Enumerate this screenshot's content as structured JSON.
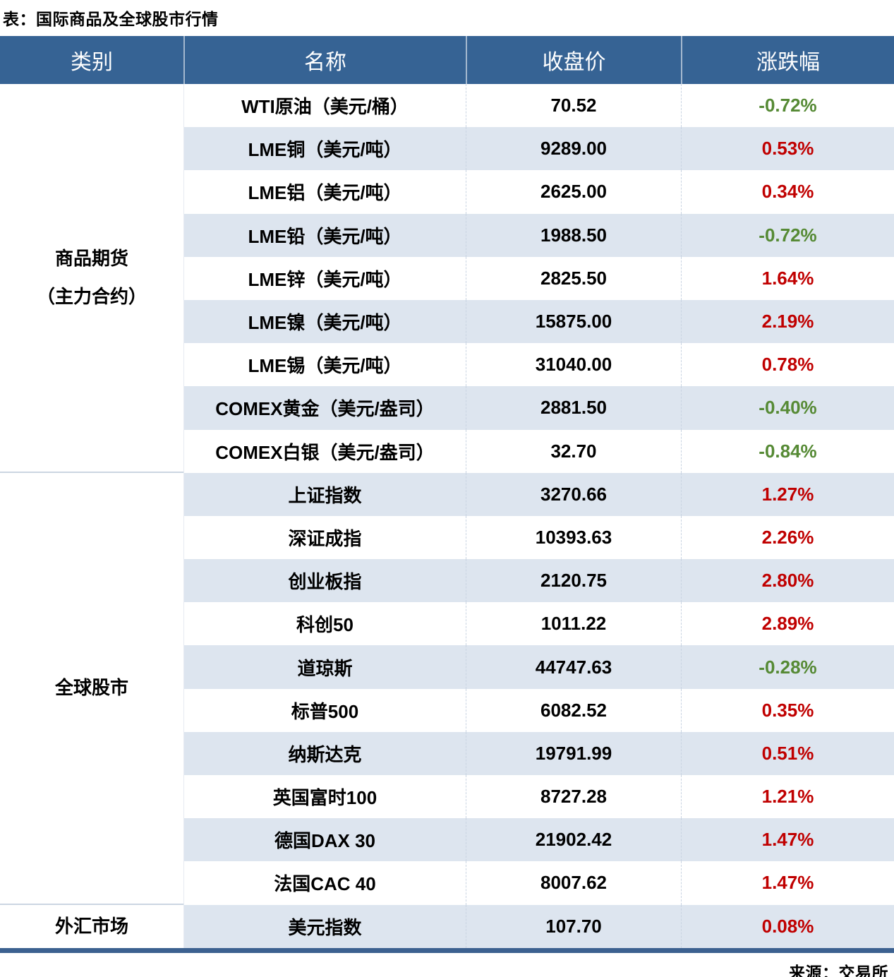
{
  "title": "表：国际商品及全球股市行情",
  "source": "来源：交易所",
  "headers": [
    "类别",
    "名称",
    "收盘价",
    "涨跌幅"
  ],
  "categories": [
    {
      "lines": [
        "商品期货",
        "（主力合约）"
      ]
    },
    {
      "lines": [
        "全球股市"
      ]
    },
    {
      "lines": [
        "外汇市场"
      ]
    }
  ],
  "rows": [
    {
      "name": "WTI原油（美元/桶）",
      "close": "70.52",
      "change": "-0.72%"
    },
    {
      "name": "LME铜（美元/吨）",
      "close": "9289.00",
      "change": "0.53%"
    },
    {
      "name": "LME铝（美元/吨）",
      "close": "2625.00",
      "change": "0.34%"
    },
    {
      "name": "LME铅（美元/吨）",
      "close": "1988.50",
      "change": "-0.72%"
    },
    {
      "name": "LME锌（美元/吨）",
      "close": "2825.50",
      "change": "1.64%"
    },
    {
      "name": "LME镍（美元/吨）",
      "close": "15875.00",
      "change": "2.19%"
    },
    {
      "name": "LME锡（美元/吨）",
      "close": "31040.00",
      "change": "0.78%"
    },
    {
      "name": "COMEX黄金（美元/盎司）",
      "close": "2881.50",
      "change": "-0.40%"
    },
    {
      "name": "COMEX白银（美元/盎司）",
      "close": "32.70",
      "change": "-0.84%"
    },
    {
      "name": "上证指数",
      "close": "3270.66",
      "change": "1.27%"
    },
    {
      "name": "深证成指",
      "close": "10393.63",
      "change": "2.26%"
    },
    {
      "name": "创业板指",
      "close": "2120.75",
      "change": "2.80%"
    },
    {
      "name": "科创50",
      "close": "1011.22",
      "change": "2.89%"
    },
    {
      "name": "道琼斯",
      "close": "44747.63",
      "change": "-0.28%"
    },
    {
      "name": "标普500",
      "close": "6082.52",
      "change": "0.35%"
    },
    {
      "name": "纳斯达克",
      "close": "19791.99",
      "change": "0.51%"
    },
    {
      "name": "英国富时100",
      "close": "8727.28",
      "change": "1.21%"
    },
    {
      "name": "德国DAX 30",
      "close": "21902.42",
      "change": "1.47%"
    },
    {
      "name": "法国CAC 40",
      "close": "8007.62",
      "change": "1.47%"
    },
    {
      "name": "美元指数",
      "close": "107.70",
      "change": "0.08%"
    }
  ],
  "colors": {
    "header_bg": "#366394",
    "stripe": "#dde5ef",
    "positive_red": "#c00000",
    "negative_green": "#568a35",
    "bottom_border": "#3c6190"
  },
  "chart_data": {
    "type": "table",
    "title": "表：国际商品及全球股市行情",
    "columns": [
      "类别",
      "名称",
      "收盘价",
      "涨跌幅"
    ],
    "rows": [
      [
        "商品期货（主力合约）",
        "WTI原油（美元/桶）",
        70.52,
        "-0.72%"
      ],
      [
        "商品期货（主力合约）",
        "LME铜（美元/吨）",
        9289.0,
        "0.53%"
      ],
      [
        "商品期货（主力合约）",
        "LME铝（美元/吨）",
        2625.0,
        "0.34%"
      ],
      [
        "商品期货（主力合约）",
        "LME铅（美元/吨）",
        1988.5,
        "-0.72%"
      ],
      [
        "商品期货（主力合约）",
        "LME锌（美元/吨）",
        2825.5,
        "1.64%"
      ],
      [
        "商品期货（主力合约）",
        "LME镍（美元/吨）",
        15875.0,
        "2.19%"
      ],
      [
        "商品期货（主力合约）",
        "LME锡（美元/吨）",
        31040.0,
        "0.78%"
      ],
      [
        "商品期货（主力合约）",
        "COMEX黄金（美元/盎司）",
        2881.5,
        "-0.40%"
      ],
      [
        "商品期货（主力合约）",
        "COMEX白银（美元/盎司）",
        32.7,
        "-0.84%"
      ],
      [
        "全球股市",
        "上证指数",
        3270.66,
        "1.27%"
      ],
      [
        "全球股市",
        "深证成指",
        10393.63,
        "2.26%"
      ],
      [
        "全球股市",
        "创业板指",
        2120.75,
        "2.80%"
      ],
      [
        "全球股市",
        "科创50",
        1011.22,
        "2.89%"
      ],
      [
        "全球股市",
        "道琼斯",
        44747.63,
        "-0.28%"
      ],
      [
        "全球股市",
        "标普500",
        6082.52,
        "0.35%"
      ],
      [
        "全球股市",
        "纳斯达克",
        19791.99,
        "0.51%"
      ],
      [
        "全球股市",
        "英国富时100",
        8727.28,
        "1.21%"
      ],
      [
        "全球股市",
        "德国DAX 30",
        21902.42,
        "1.47%"
      ],
      [
        "全球股市",
        "法国CAC 40",
        8007.62,
        "1.47%"
      ],
      [
        "外汇市场",
        "美元指数",
        107.7,
        "0.08%"
      ]
    ],
    "source": "来源：交易所"
  }
}
